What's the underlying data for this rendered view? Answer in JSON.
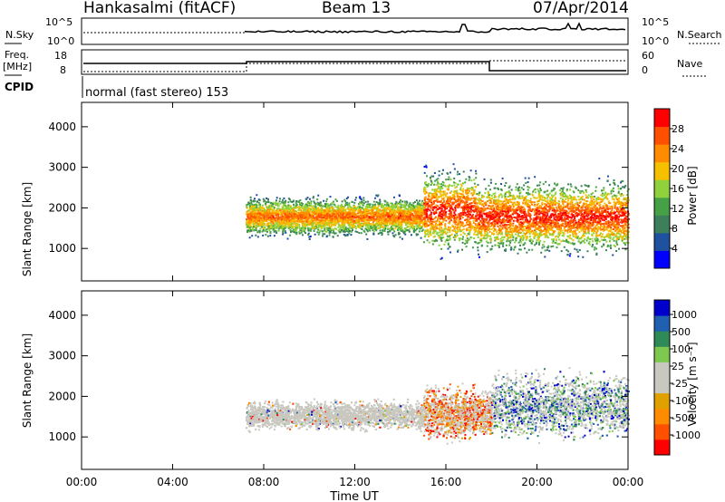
{
  "header": {
    "station": "Hankasalmi (fitACF)",
    "beam": "Beam 13",
    "date": "07/Apr/2014"
  },
  "panels": {
    "nsky": {
      "label": "N.Sky",
      "right_label": "N.Search",
      "ticks_left": [
        "10^5",
        "10^0"
      ],
      "ticks_right": [
        "10^5",
        "10^0"
      ]
    },
    "freq": {
      "label_top": "Freq.",
      "label_unit": "[MHz]",
      "ticks_left": [
        "18",
        "8"
      ],
      "ticks_right": [
        "60",
        "0"
      ],
      "right_label": "Nave"
    },
    "cpid": {
      "label": "CPID",
      "text": "normal (fast stereo) 153"
    }
  },
  "colors": {
    "power_scale": [
      "#0000ff",
      "#2050a0",
      "#3c7f5a",
      "#46a046",
      "#8fd23c",
      "#f5c000",
      "#ff8c00",
      "#ff5000",
      "#ff0000"
    ],
    "velocity_scale": [
      "#ff0000",
      "#ff5000",
      "#ff8c00",
      "#e0a000",
      "#c8c8c0",
      "#c8c8c0",
      "#7ec850",
      "#2e8b57",
      "#2060b0",
      "#0000cc"
    ]
  },
  "chart_data": [
    {
      "type": "heatmap",
      "title": "",
      "xlabel": "Time UT",
      "ylabel": "Slant Range [km]",
      "x_ticks": [
        "00:00",
        "04:00",
        "08:00",
        "12:00",
        "16:00",
        "20:00",
        "00:00"
      ],
      "y_ticks": [
        "1000",
        "2000",
        "3000",
        "4000"
      ],
      "xlim_hours": [
        0,
        24
      ],
      "ylim_km": [
        200,
        4600
      ],
      "colorbar": {
        "label": "Power [dB]",
        "ticks": [
          "4",
          "8",
          "12",
          "16",
          "20",
          "24",
          "28"
        ]
      },
      "echo_regions": [
        {
          "start_h": 7.2,
          "end_h": 15.0,
          "range_km": [
            1200,
            2400
          ],
          "peak_dB": 24
        },
        {
          "start_h": 15.0,
          "end_h": 17.3,
          "range_km": [
            700,
            3200
          ],
          "peak_dB": 28
        },
        {
          "start_h": 17.3,
          "end_h": 24.0,
          "range_km": [
            700,
            2900
          ],
          "peak_dB": 28
        }
      ]
    },
    {
      "type": "heatmap",
      "title": "",
      "xlabel": "Time UT",
      "ylabel": "Slant Range [km]",
      "x_ticks": [
        "00:00",
        "04:00",
        "08:00",
        "12:00",
        "16:00",
        "20:00",
        "00:00"
      ],
      "y_ticks": [
        "1000",
        "2000",
        "3000",
        "4000"
      ],
      "xlim_hours": [
        0,
        24
      ],
      "ylim_km": [
        200,
        4600
      ],
      "colorbar": {
        "label": "Velocity [m s⁻¹]",
        "ticks": [
          "1000",
          "500",
          "100",
          "25",
          "-25",
          "-100",
          "-500",
          "-1000"
        ]
      },
      "echo_regions": [
        {
          "start_h": 7.2,
          "end_h": 15.0,
          "range_km": [
            1100,
            2000
          ],
          "velocity_ms": 0
        },
        {
          "start_h": 15.0,
          "end_h": 18.0,
          "range_km": [
            800,
            2400
          ],
          "velocity_ms": -100
        },
        {
          "start_h": 18.0,
          "end_h": 24.0,
          "range_km": [
            800,
            2800
          ],
          "velocity_ms": 100
        }
      ]
    }
  ]
}
